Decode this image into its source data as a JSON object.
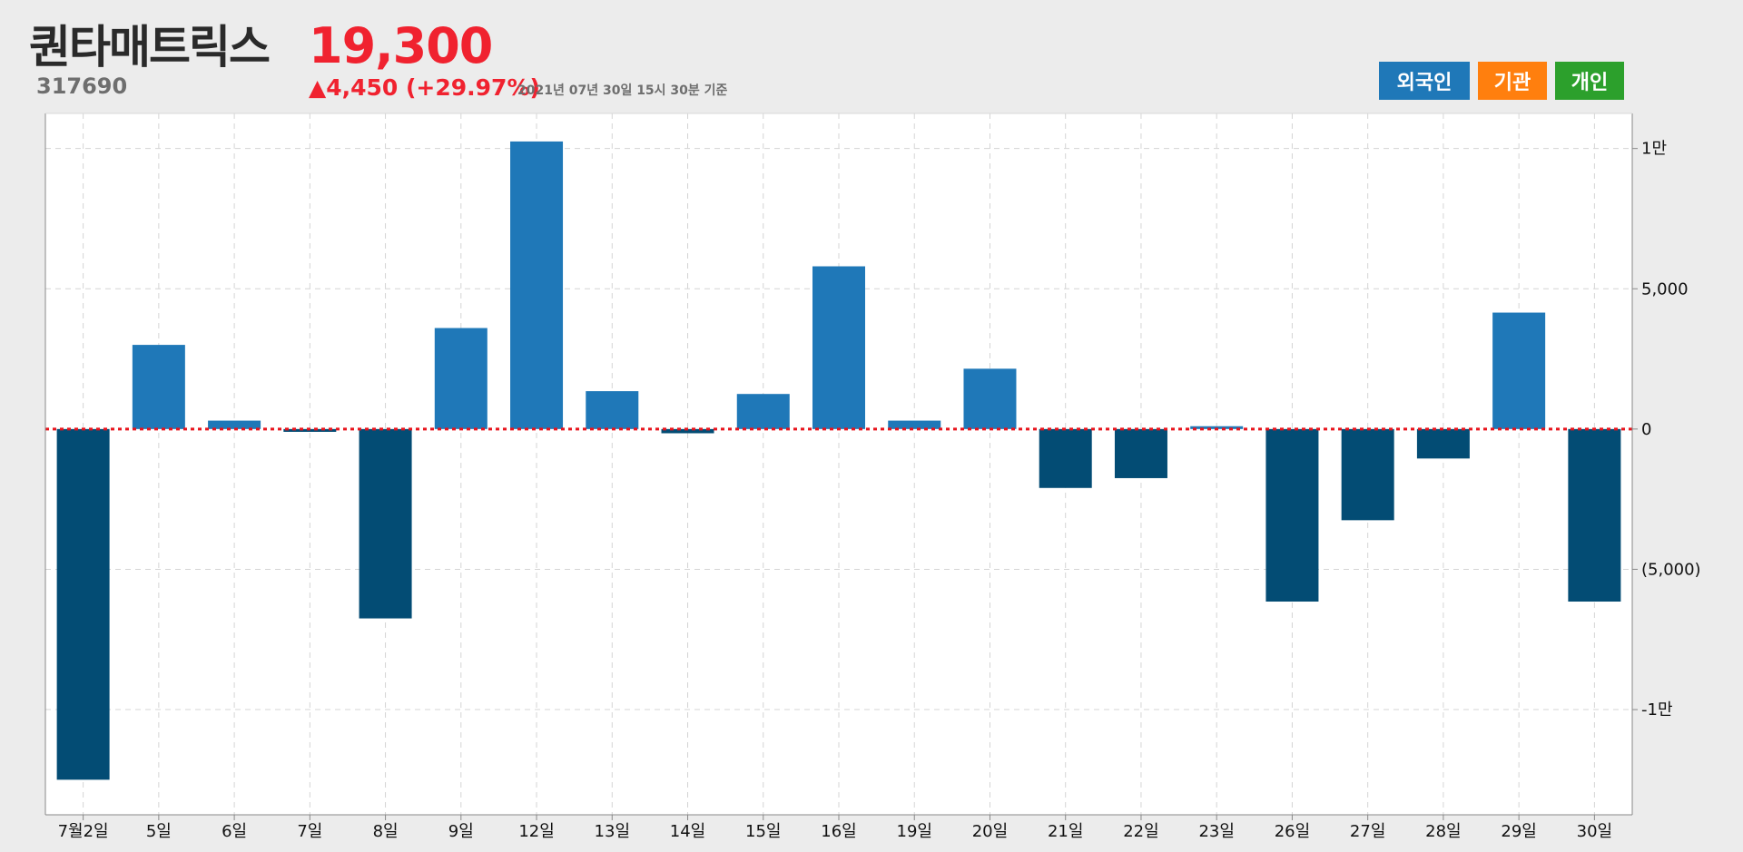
{
  "header": {
    "name": "퀀타매트릭스",
    "code": "317690",
    "price": "19,300",
    "change": "▲4,450 (+29.97%)",
    "as_of": "2021년 07년 30일 15시 30분 기준"
  },
  "legend": [
    {
      "label": "외국인",
      "color": "#1f78b8"
    },
    {
      "label": "기관",
      "color": "#ff7f0e"
    },
    {
      "label": "개인",
      "color": "#2ca02c"
    }
  ],
  "colors": {
    "positive": "#1f78b8",
    "negative": "#034c74",
    "zero_line": "#e8141c",
    "grid": "#d4d4d4"
  },
  "chart_data": {
    "type": "bar",
    "series": [
      {
        "values": [
          -12500,
          3000,
          300,
          -100,
          -6750,
          3600,
          10250,
          1350,
          -150,
          1250,
          5800,
          300,
          2150,
          -2100,
          -1750,
          100,
          -6150,
          -3250,
          -1050,
          4150,
          -6150
        ]
      }
    ],
    "categories": [
      "7월2일",
      "5일",
      "6일",
      "7일",
      "8일",
      "9일",
      "12일",
      "13일",
      "14일",
      "15일",
      "16일",
      "19일",
      "20일",
      "21일",
      "22일",
      "23일",
      "26일",
      "27일",
      "28일",
      "29일",
      "30일"
    ],
    "y_ticks": [
      {
        "value": 10000,
        "label": "1만"
      },
      {
        "value": 5000,
        "label": "5,000"
      },
      {
        "value": 0,
        "label": "0"
      },
      {
        "value": -5000,
        "label": "(5,000)"
      },
      {
        "value": -10000,
        "label": "-1만"
      }
    ],
    "ylim": [
      -13750,
      11250
    ],
    "axis_position": "right",
    "grid": true,
    "zero_line": "dotted"
  }
}
